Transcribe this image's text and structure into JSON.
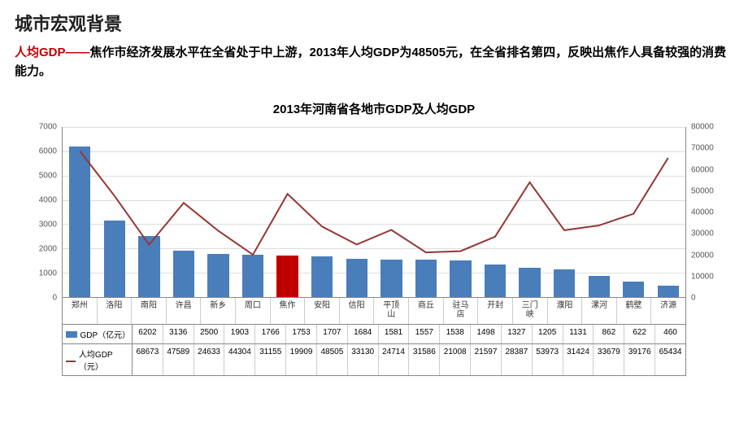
{
  "page": {
    "title": "城市宏观背景",
    "subtitle_red": "人均GDP——",
    "subtitle_rest": "焦作市经济发展水平在全省处于中上游，2013年人均GDP为48505元，在全省排名第四，反映出焦作人具备较强的消费能力。"
  },
  "chart": {
    "type": "combo-bar-line",
    "title": "2013年河南省各地市GDP及人均GDP",
    "categories": [
      "郑州",
      "洛阳",
      "南阳",
      "许昌",
      "新乡",
      "周口",
      "焦作",
      "安阳",
      "信阳",
      "平顶\n山",
      "商丘",
      "驻马\n店",
      "开封",
      "三门\n峡",
      "濮阳",
      "漯河",
      "鹤壁",
      "济源"
    ],
    "series_bar": {
      "name": "GDP（亿元）",
      "values": [
        6202,
        3136,
        2500,
        1903,
        1766,
        1753,
        1707,
        1684,
        1581,
        1557,
        1538,
        1498,
        1327,
        1205,
        1131,
        862,
        622,
        460
      ],
      "color": "#4a7ebb",
      "highlight_index": 6,
      "highlight_color": "#c00000",
      "bar_width": 0.62
    },
    "series_line": {
      "name": "人均GDP（元）",
      "values": [
        68673,
        47589,
        24633,
        44304,
        31155,
        19909,
        48505,
        33130,
        24714,
        31586,
        21008,
        21597,
        28387,
        53973,
        31424,
        33679,
        39176,
        65434
      ],
      "color": "#953735",
      "line_width": 2
    },
    "y_left": {
      "min": 0,
      "max": 7000,
      "step": 1000
    },
    "y_right": {
      "min": 0,
      "max": 80000,
      "step": 10000
    },
    "background_color": "#ffffff",
    "grid_color": "#dddddd",
    "axis_color": "#888888",
    "tick_fontsize": 10,
    "title_fontsize": 15
  }
}
